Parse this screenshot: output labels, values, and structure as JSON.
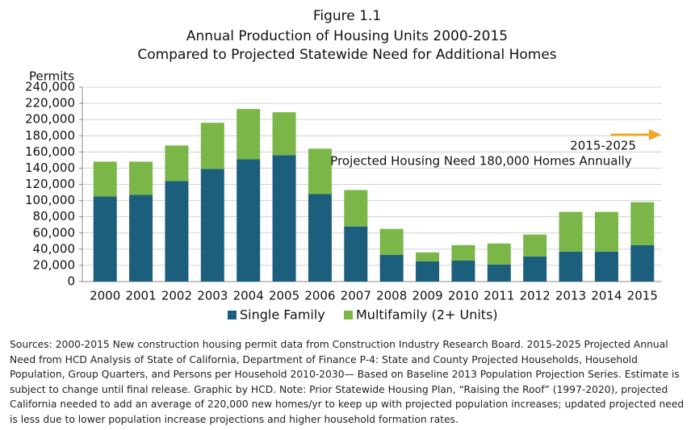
{
  "chart_data": {
    "type": "stacked_bar",
    "title": "Figure 1.1",
    "subtitle": "Annual Production of Housing Units 2000-2015",
    "subtitle2": "Compared to Projected Statewide Need for Additional Homes",
    "y_label": "Permits",
    "categories": [
      "2000",
      "2001",
      "2002",
      "2003",
      "2004",
      "2005",
      "2006",
      "2007",
      "2008",
      "2009",
      "2010",
      "2011",
      "2012",
      "2013",
      "2014",
      "2015"
    ],
    "series": [
      {
        "name": "Single Family",
        "color": "#1c5f7c",
        "values": [
          105000,
          107000,
          124000,
          139000,
          151000,
          156000,
          108000,
          68000,
          33000,
          25000,
          26000,
          21000,
          31000,
          37000,
          37000,
          45000
        ]
      },
      {
        "name": "Multifamily (2+ Units)",
        "color": "#7ab648",
        "values": [
          43000,
          41000,
          44000,
          57000,
          62000,
          53000,
          56000,
          45000,
          32000,
          11000,
          19000,
          26000,
          27000,
          49000,
          49000,
          53000
        ]
      }
    ],
    "ylim": [
      0,
      240000
    ],
    "yticks": [
      0,
      {
        "value": 20000,
        "label": "20,000"
      },
      {
        "value": 40000,
        "label": "40,000"
      },
      {
        "value": 60000,
        "label": "60,000"
      },
      {
        "value": 80000,
        "label": "80,000"
      },
      {
        "value": 100000,
        "label": "100,000"
      },
      {
        "value": 120000,
        "label": "120,000"
      },
      {
        "value": 140000,
        "label": "140,000"
      },
      {
        "value": 160000,
        "label": "160,000"
      },
      {
        "value": 180000,
        "label": "180,000"
      },
      {
        "value": 200000,
        "label": "200,000"
      },
      {
        "value": 220000,
        "label": "220,000"
      },
      {
        "value": 240000,
        "label": "240,000"
      }
    ],
    "grid": true,
    "annotations": [
      "2015-2025",
      "Projected Housing Need 180,000 Homes Annually"
    ],
    "arrow_color": "#f5a623",
    "source": "Sources: 2000-2015 New construction housing permit data from Construction Industry Research Board. 2015-2025 Projected Annual Need from HCD Analysis of State of California, Department of Finance P-4: State and County Projected Households, Household Population, Group Quarters, and Persons per Household 2010-2030— Based on Baseline 2013 Population Projection Series. Estimate is subject to change until final release. Graphic by HCD. Note: Prior Statewide Housing Plan, “Raising the Roof” (1997-2020), projected California needed to add an average of 220,000 new homes/yr to keep up with projected population increases; updated projected need is less due to lower population increase projections and higher household formation rates."
  }
}
